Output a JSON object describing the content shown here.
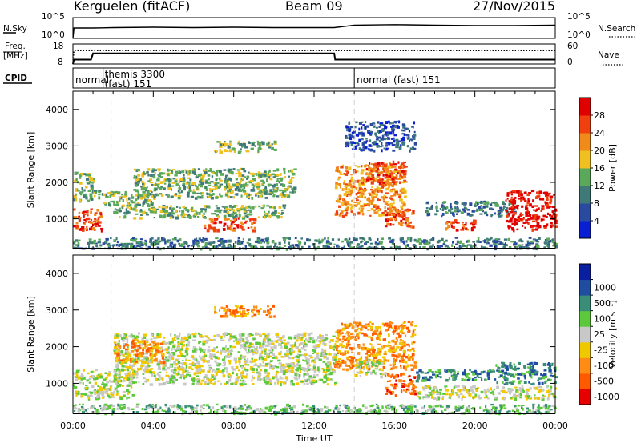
{
  "header": {
    "station": "Kerguelen (fitACF)",
    "beam": "Beam 09",
    "date": "27/Nov/2015"
  },
  "strip_labels": {
    "nsky": "N.Sky",
    "nsearch": "N.Search",
    "freq_line1": "Freq.",
    "freq_line2": "[MHz]",
    "nave": "Nave",
    "cpid": "CPID",
    "nsky_ticks": [
      "10^5",
      "10^0"
    ],
    "nsearch_ticks": [
      "10^5",
      "10^0"
    ],
    "freq_ticks": [
      "18",
      "8"
    ],
    "nave_ticks": [
      "60",
      "0"
    ]
  },
  "cpid_segments": [
    {
      "label": "normal",
      "start_hour": 0.0
    },
    {
      "label": "themis 3300",
      "label2": "(fast) 151",
      "start_hour": 1.5
    },
    {
      "label": "normal (fast) 151",
      "start_hour": 14.0
    }
  ],
  "colors": {
    "power": [
      "#0a1ed2",
      "#2a4aa0",
      "#3f7a78",
      "#5aa85a",
      "#f0c020",
      "#f08a1a",
      "#f04010",
      "#e10000"
    ],
    "velocity": [
      "#e60000",
      "#ff5a00",
      "#ff8c14",
      "#f0c800",
      "#c8c8c8",
      "#5cc83c",
      "#3a8e78",
      "#1f4ea0",
      "#0a1ea0"
    ]
  },
  "chart_data": [
    {
      "type": "line",
      "name": "nsky_nsearch_strip",
      "x": [
        0,
        0.05,
        1,
        2,
        4,
        6,
        8,
        10,
        12,
        13,
        14,
        16,
        18,
        20,
        22,
        24
      ],
      "series": [
        {
          "name": "N.Sky",
          "values": [
            0,
            2.5,
            2.5,
            2.6,
            2.7,
            2.6,
            2.7,
            2.6,
            2.6,
            2.6,
            3.2,
            3.3,
            3.2,
            3.1,
            3.1,
            3.2
          ]
        }
      ],
      "ylim": [
        0,
        5
      ],
      "yscale": "log"
    },
    {
      "type": "line",
      "name": "freq_nave_strip",
      "x": [
        0,
        0.05,
        0.9,
        1.0,
        13.0,
        13.05,
        24
      ],
      "series": [
        {
          "name": "Freq.",
          "values": [
            8,
            10.2,
            10.2,
            13.3,
            13.3,
            10.2,
            10.2
          ]
        },
        {
          "name": "Nave",
          "values": [
            0,
            40,
            40,
            40,
            40,
            40,
            40
          ]
        }
      ],
      "freq_ylim": [
        8,
        18
      ],
      "nave_ylim": [
        0,
        60
      ]
    },
    {
      "type": "heatmap",
      "name": "power_panel",
      "xlabel": "",
      "ylabel": "Slant Range [km]",
      "x_ticks": [
        "00:00",
        "04:00",
        "08:00",
        "12:00",
        "16:00",
        "20:00",
        "00:00"
      ],
      "xlim_hours": [
        0,
        24
      ],
      "y_ticks": [
        1000,
        2000,
        3000,
        4000
      ],
      "ylim": [
        180,
        4500
      ],
      "colorbar_label": "Power [dB]",
      "colorbar_ticks": [
        4,
        8,
        12,
        16,
        20,
        24,
        28
      ],
      "echo_regions": [
        {
          "t0": 0.0,
          "t1": 1.4,
          "r0": 700,
          "r1": 1300,
          "level": 6
        },
        {
          "t0": 0.0,
          "t1": 1.0,
          "r0": 1500,
          "r1": 2300,
          "level": 3
        },
        {
          "t0": 1.0,
          "t1": 4.0,
          "r0": 1400,
          "r1": 1800,
          "level": 3
        },
        {
          "t0": 3.0,
          "t1": 11.0,
          "r0": 1600,
          "r1": 2400,
          "level": 3
        },
        {
          "t0": 2.0,
          "t1": 10.5,
          "r0": 1050,
          "r1": 1400,
          "level": 3
        },
        {
          "t0": 6.5,
          "t1": 9.0,
          "r0": 700,
          "r1": 1050,
          "level": 6
        },
        {
          "t0": 7.0,
          "t1": 10.0,
          "r0": 2850,
          "r1": 3150,
          "level": 3
        },
        {
          "t0": 13.0,
          "t1": 16.5,
          "r0": 1100,
          "r1": 2500,
          "level": 5
        },
        {
          "t0": 14.5,
          "t1": 16.5,
          "r0": 2000,
          "r1": 2600,
          "level": 6
        },
        {
          "t0": 15.5,
          "t1": 17.0,
          "r0": 800,
          "r1": 1300,
          "level": 6
        },
        {
          "t0": 17.5,
          "t1": 22.0,
          "r0": 1100,
          "r1": 1500,
          "level": 2
        },
        {
          "t0": 18.5,
          "t1": 20.0,
          "r0": 700,
          "r1": 1000,
          "level": 6
        },
        {
          "t0": 21.5,
          "t1": 24.0,
          "r0": 700,
          "r1": 1800,
          "level": 7
        },
        {
          "t0": 0.0,
          "t1": 24.0,
          "r0": 200,
          "r1": 500,
          "level": 2
        },
        {
          "t0": 13.5,
          "t1": 17.0,
          "r0": 2900,
          "r1": 3700,
          "level": 1
        }
      ]
    },
    {
      "type": "heatmap",
      "name": "velocity_panel",
      "xlabel": "Time UT",
      "ylabel": "Slant Range [km]",
      "x_ticks": [
        "00:00",
        "04:00",
        "08:00",
        "12:00",
        "16:00",
        "20:00",
        "00:00"
      ],
      "xlim_hours": [
        0,
        24
      ],
      "y_ticks": [
        1000,
        2000,
        3000,
        4000
      ],
      "ylim": [
        180,
        4500
      ],
      "colorbar_label": "Velocity [m s⁻¹]",
      "colorbar_ticks": [
        "1000",
        "500",
        "100",
        "25",
        "-25",
        "-100",
        "-500",
        "-1000"
      ],
      "echo_regions": [
        {
          "t0": 0.0,
          "t1": 3.0,
          "r0": 600,
          "r1": 1400,
          "level": 4
        },
        {
          "t0": 2.0,
          "t1": 13.0,
          "r0": 1000,
          "r1": 2400,
          "level": 4
        },
        {
          "t0": 2.0,
          "t1": 4.5,
          "r0": 1600,
          "r1": 2200,
          "level": 2
        },
        {
          "t0": 7.0,
          "t1": 10.0,
          "r0": 2850,
          "r1": 3150,
          "level": 2
        },
        {
          "t0": 13.0,
          "t1": 17.0,
          "r0": 1400,
          "r1": 2700,
          "level": 2
        },
        {
          "t0": 15.5,
          "t1": 17.0,
          "r0": 700,
          "r1": 1300,
          "level": 1
        },
        {
          "t0": 14.0,
          "t1": 15.5,
          "r0": 1200,
          "r1": 1700,
          "level": 4
        },
        {
          "t0": 17.0,
          "t1": 21.0,
          "r0": 1100,
          "r1": 1400,
          "level": 6
        },
        {
          "t0": 21.0,
          "t1": 24.0,
          "r0": 1000,
          "r1": 1600,
          "level": 6
        },
        {
          "t0": 17.0,
          "t1": 24.0,
          "r0": 600,
          "r1": 950,
          "level": 4
        },
        {
          "t0": 0.0,
          "t1": 24.0,
          "r0": 200,
          "r1": 450,
          "level": 5
        }
      ]
    }
  ]
}
